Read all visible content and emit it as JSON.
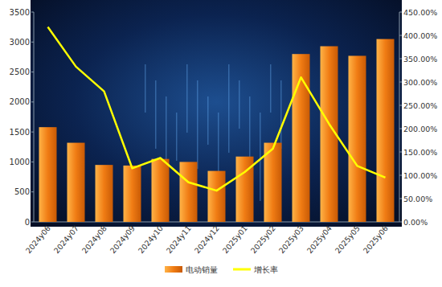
{
  "chart_data": {
    "type": "bar",
    "categories": [
      "2024y06",
      "2024y07",
      "2024y08",
      "2024y09",
      "2024y10",
      "2024y11",
      "2024y12",
      "2025y01",
      "2025y02",
      "2025y03",
      "2025y04",
      "2025y05",
      "2025y06"
    ],
    "series": [
      {
        "name": "电动销量",
        "type": "bar",
        "color": "#f07c14",
        "values": [
          1580,
          1320,
          950,
          940,
          1050,
          1000,
          850,
          1090,
          1320,
          2800,
          2930,
          2770,
          3050
        ]
      },
      {
        "name": "增长率",
        "type": "line",
        "color": "#ffff00",
        "axis": "y2",
        "values": [
          418,
          333,
          280,
          115,
          137,
          85,
          67,
          107,
          157,
          310,
          210,
          120,
          95
        ]
      }
    ],
    "ylim": [
      0,
      3500
    ],
    "yticks": [
      0,
      500,
      1000,
      1500,
      2000,
      2500,
      3000,
      3500
    ],
    "y2lim": [
      0,
      450
    ],
    "y2ticks": [
      {
        "value": 0,
        "label": "0.00%"
      },
      {
        "value": 50,
        "label": "50.00%"
      },
      {
        "value": 100,
        "label": "100.00%"
      },
      {
        "value": 150,
        "label": "150.00%"
      },
      {
        "value": 200,
        "label": "200.00%"
      },
      {
        "value": 250,
        "label": "250.00%"
      },
      {
        "value": 300,
        "label": "300.00%"
      },
      {
        "value": 350,
        "label": "350.00%"
      },
      {
        "value": 400,
        "label": "400.00%"
      },
      {
        "value": 450,
        "label": "450.00%"
      }
    ],
    "grid": false,
    "legend": "bottom"
  }
}
